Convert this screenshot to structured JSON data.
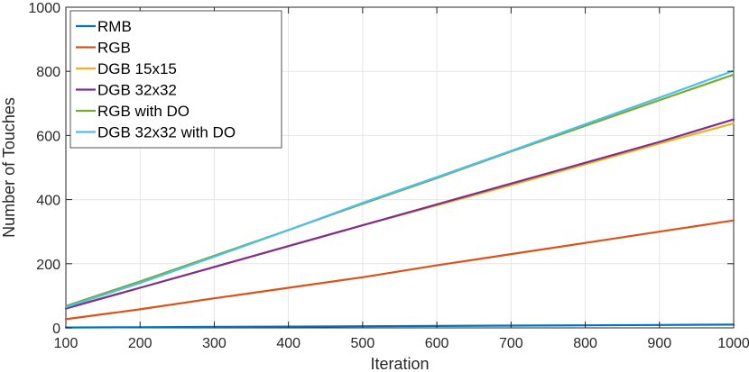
{
  "chart_data": {
    "type": "line",
    "title": "",
    "xlabel": "Iteration",
    "ylabel": "Number of Touches",
    "xlim": [
      100,
      1000
    ],
    "ylim": [
      0,
      1000
    ],
    "xticks": [
      100,
      200,
      300,
      400,
      500,
      600,
      700,
      800,
      900,
      1000
    ],
    "yticks": [
      0,
      200,
      400,
      600,
      800,
      1000
    ],
    "grid": true,
    "legend_position": "top-left",
    "x": [
      100,
      200,
      300,
      400,
      500,
      600,
      700,
      800,
      900,
      1000
    ],
    "series": [
      {
        "name": "RMB",
        "color": "#0072BD",
        "values": [
          1,
          2,
          3,
          4,
          5,
          6,
          7,
          8,
          9,
          10
        ]
      },
      {
        "name": "RGB",
        "color": "#D95319",
        "values": [
          27,
          58,
          92,
          125,
          158,
          195,
          230,
          265,
          300,
          335
        ]
      },
      {
        "name": "DGB 15x15",
        "color": "#EDB120",
        "values": [
          62,
          125,
          190,
          255,
          320,
          382,
          445,
          510,
          575,
          638
        ]
      },
      {
        "name": "DGB 32x32",
        "color": "#7E2F8E",
        "values": [
          60,
          125,
          190,
          255,
          320,
          385,
          450,
          515,
          580,
          650
        ]
      },
      {
        "name": "RGB with DO",
        "color": "#77AC30",
        "values": [
          68,
          145,
          225,
          305,
          387,
          467,
          550,
          630,
          710,
          790
        ]
      },
      {
        "name": "DGB 32x32 with DO",
        "color": "#4DBEEE",
        "values": [
          65,
          140,
          222,
          305,
          390,
          470,
          552,
          635,
          718,
          802
        ]
      }
    ]
  }
}
